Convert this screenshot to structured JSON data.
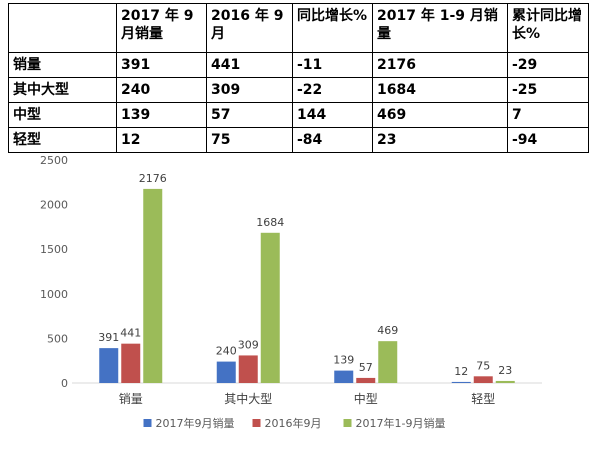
{
  "table": {
    "headers": [
      "",
      "2017 年 9 月销量",
      "2016 年 9 月",
      "同比增长%",
      "2017 年 1-9 月销量",
      "累计同比增长%"
    ],
    "rows": [
      [
        "销量",
        "391",
        "441",
        "-11",
        "2176",
        "-29"
      ],
      [
        "其中大型",
        "240",
        "309",
        "-22",
        "1684",
        "-25"
      ],
      [
        "中型",
        "139",
        "57",
        "144",
        "469",
        "7"
      ],
      [
        "轻型",
        "12",
        "75",
        "-84",
        "23",
        "-94"
      ]
    ]
  },
  "chart_data": {
    "type": "bar",
    "categories": [
      "销量",
      "其中大型",
      "中型",
      "轻型"
    ],
    "series": [
      {
        "name": "2017年9月销量",
        "values": [
          391,
          240,
          139,
          12
        ],
        "color": "#4472C4"
      },
      {
        "name": "2016年9月",
        "values": [
          441,
          309,
          57,
          75
        ],
        "color": "#C0504D"
      },
      {
        "name": "2017年1-9月销量",
        "values": [
          2176,
          1684,
          469,
          23
        ],
        "color": "#9BBB59"
      }
    ],
    "ylim": [
      0,
      2500
    ],
    "yticks": [
      "0",
      "500",
      "1000",
      "1500",
      "2000",
      "2500"
    ],
    "grid": false,
    "legend_position": "bottom"
  }
}
